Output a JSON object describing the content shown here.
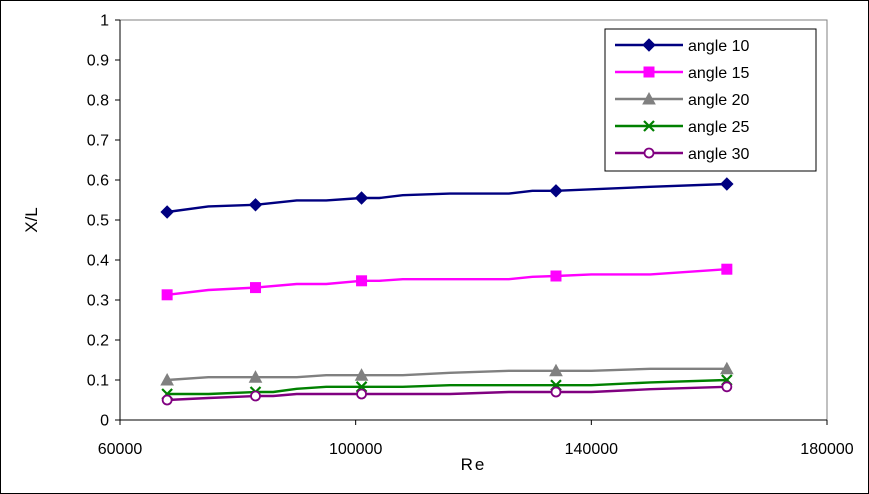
{
  "chart_data": {
    "type": "line",
    "title": "",
    "xlabel": "Re",
    "ylabel": "X/L",
    "xlim": [
      60000,
      180000
    ],
    "ylim": [
      0,
      1
    ],
    "xticks": [
      60000,
      100000,
      140000,
      180000
    ],
    "xtick_labels": [
      "60000",
      "100000",
      "140000",
      "180000"
    ],
    "yticks": [
      0,
      0.1,
      0.2,
      0.3,
      0.4,
      0.5,
      0.6,
      0.7,
      0.8,
      0.9,
      1
    ],
    "ytick_labels": [
      "0",
      "0.1",
      "0.2",
      "0.3",
      "0.4",
      "0.5",
      "0.6",
      "0.7",
      "0.8",
      "0.9",
      "1"
    ],
    "grid": false,
    "legend_position": "top-right",
    "series": [
      {
        "name": "angle 10",
        "color": "#000080",
        "marker": "diamond",
        "x": [
          68000,
          75000,
          83000,
          90000,
          95000,
          101000,
          104000,
          108000,
          116000,
          126000,
          130000,
          134000,
          150000,
          163000
        ],
        "y": [
          0.52,
          0.534,
          0.538,
          0.549,
          0.549,
          0.555,
          0.555,
          0.562,
          0.566,
          0.566,
          0.573,
          0.573,
          0.583,
          0.59
        ],
        "marker_x": [
          68000,
          83000,
          101000,
          134000,
          163000
        ]
      },
      {
        "name": "angle 15",
        "color": "#FF00FF",
        "marker": "square",
        "x": [
          68000,
          75000,
          83000,
          90000,
          95000,
          101000,
          104000,
          108000,
          116000,
          126000,
          130000,
          134000,
          140000,
          150000,
          163000
        ],
        "y": [
          0.313,
          0.325,
          0.331,
          0.34,
          0.34,
          0.348,
          0.348,
          0.352,
          0.352,
          0.352,
          0.358,
          0.36,
          0.364,
          0.364,
          0.377
        ],
        "marker_x": [
          68000,
          83000,
          101000,
          134000,
          163000
        ]
      },
      {
        "name": "angle 20",
        "color": "#808080",
        "marker": "triangle",
        "x": [
          68000,
          75000,
          83000,
          90000,
          95000,
          101000,
          108000,
          116000,
          126000,
          134000,
          140000,
          150000,
          163000
        ],
        "y": [
          0.1,
          0.107,
          0.107,
          0.107,
          0.112,
          0.112,
          0.112,
          0.118,
          0.123,
          0.123,
          0.123,
          0.128,
          0.128
        ],
        "marker_x": [
          68000,
          83000,
          101000,
          134000,
          163000
        ]
      },
      {
        "name": "angle 25",
        "color": "#008000",
        "marker": "x",
        "x": [
          68000,
          75000,
          83000,
          86000,
          90000,
          95000,
          101000,
          108000,
          116000,
          126000,
          134000,
          140000,
          150000,
          163000
        ],
        "y": [
          0.065,
          0.065,
          0.07,
          0.07,
          0.078,
          0.083,
          0.083,
          0.083,
          0.087,
          0.087,
          0.087,
          0.087,
          0.094,
          0.1
        ],
        "marker_x": [
          68000,
          83000,
          101000,
          134000,
          163000
        ]
      },
      {
        "name": "angle 30",
        "color": "#800080",
        "marker": "circle",
        "x": [
          68000,
          75000,
          83000,
          86000,
          90000,
          101000,
          116000,
          126000,
          134000,
          140000,
          150000,
          163000
        ],
        "y": [
          0.05,
          0.055,
          0.06,
          0.06,
          0.065,
          0.065,
          0.065,
          0.07,
          0.07,
          0.07,
          0.077,
          0.083
        ],
        "marker_x": [
          68000,
          83000,
          101000,
          134000,
          163000
        ]
      }
    ]
  }
}
